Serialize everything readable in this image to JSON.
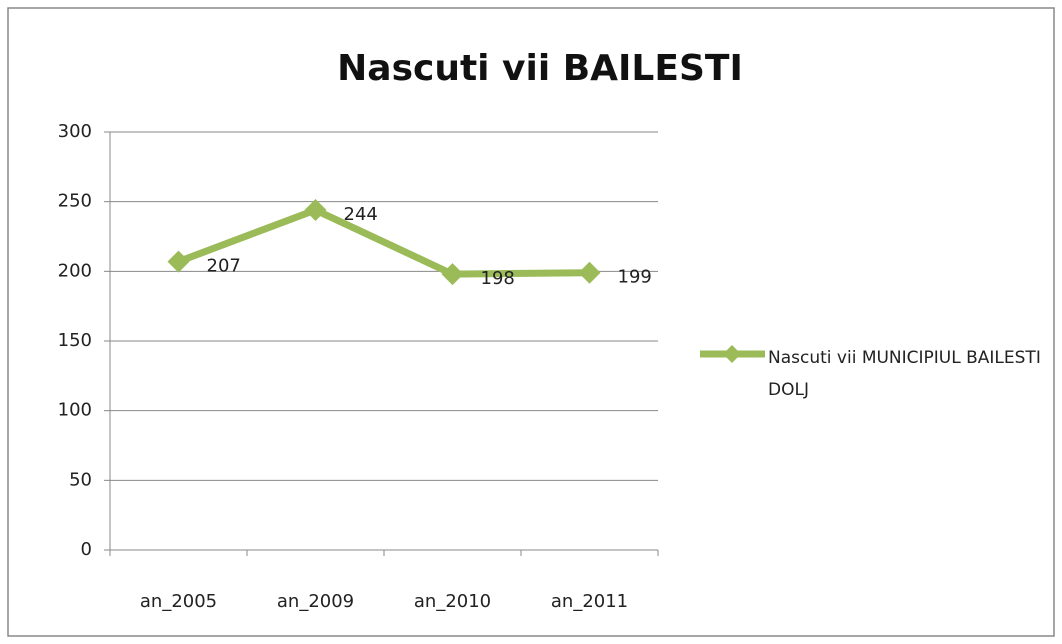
{
  "chart_data": {
    "type": "line",
    "title": "Nascuti vii BAILESTI",
    "categories": [
      "an_2005",
      "an_2009",
      "an_2010",
      "an_2011"
    ],
    "series": [
      {
        "name": "Nascuti vii MUNICIPIUL BAILESTI DOLJ",
        "color": "#9bbb59",
        "values": [
          207,
          244,
          198,
          199
        ]
      }
    ],
    "ylim": [
      0,
      300
    ],
    "yticks": [
      0,
      50,
      100,
      150,
      200,
      250,
      300
    ],
    "grid": true,
    "legend": "right"
  }
}
